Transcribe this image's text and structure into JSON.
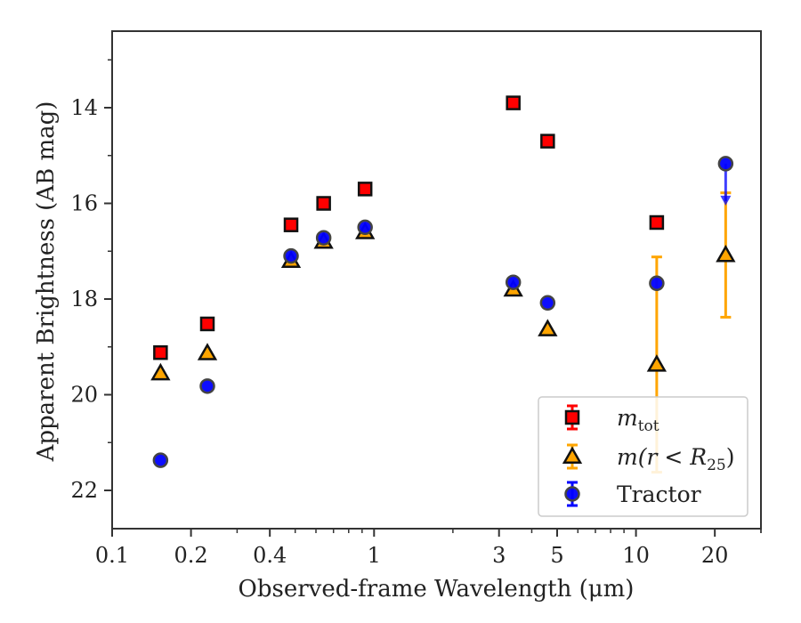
{
  "chart_data": {
    "type": "scatter",
    "xlabel": "Observed-frame Wavelength (μm)",
    "ylabel": "Apparent Brightness (AB mag)",
    "x_scale": "log",
    "xlim": [
      0.1,
      30
    ],
    "ylim": [
      22.8,
      12.4
    ],
    "y_inverted": true,
    "x_ticks": [
      0.1,
      0.2,
      0.4,
      1,
      3,
      5,
      10,
      20
    ],
    "x_tick_labels": [
      "0.1",
      "0.2",
      "0.4",
      "1",
      "3",
      "5",
      "10",
      "20"
    ],
    "y_ticks": [
      14,
      16,
      18,
      20,
      22
    ],
    "y_tick_labels": [
      "14",
      "16",
      "18",
      "20",
      "22"
    ],
    "legend_position": "lower right",
    "series": [
      {
        "name": "m_tot",
        "label_main": "m",
        "label_sub": "tot",
        "marker": "square",
        "color": "#ff0000",
        "x": [
          0.153,
          0.231,
          0.482,
          0.642,
          0.924,
          3.4,
          4.6,
          12.0
        ],
        "y": [
          19.12,
          18.52,
          16.45,
          16.0,
          15.7,
          13.9,
          14.7,
          16.4
        ]
      },
      {
        "name": "m(r<R25)",
        "label_main": "m(r < R",
        "label_sub": "25",
        "label_end": ")",
        "marker": "triangle",
        "color": "#ffa500",
        "x": [
          0.153,
          0.231,
          0.482,
          0.642,
          0.924,
          3.4,
          4.6,
          12.0,
          22.0
        ],
        "y": [
          19.55,
          19.13,
          17.2,
          16.8,
          16.6,
          17.8,
          18.63,
          19.37,
          17.08
        ],
        "yerr": [
          0,
          0,
          0,
          0,
          0,
          0,
          0,
          2.25,
          1.3
        ]
      },
      {
        "name": "Tractor",
        "marker": "circle",
        "color": "#0000ff",
        "x": [
          0.153,
          0.231,
          0.482,
          0.642,
          0.924,
          3.4,
          4.6,
          12.0,
          22.0
        ],
        "y": [
          21.37,
          19.82,
          17.1,
          16.72,
          16.5,
          17.65,
          18.08,
          17.67,
          15.17
        ],
        "upper_limit": [
          false,
          false,
          false,
          false,
          false,
          false,
          false,
          false,
          true
        ]
      }
    ]
  }
}
